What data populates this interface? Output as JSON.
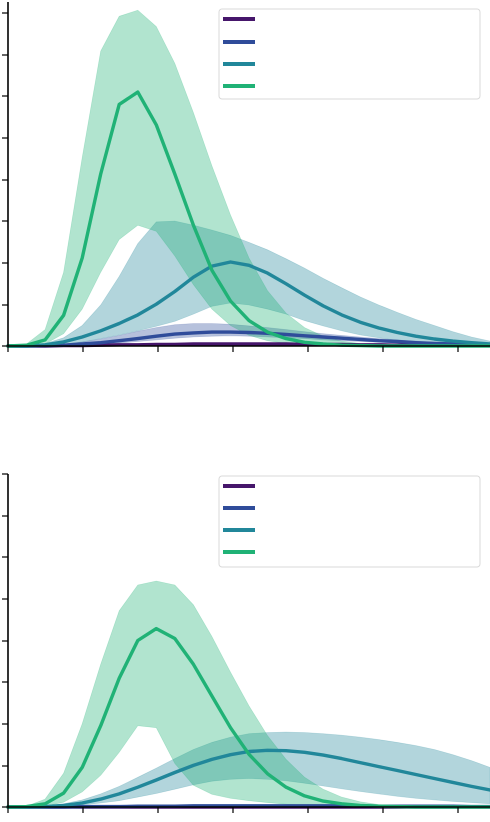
{
  "colors": {
    "series_1": "#46166b",
    "series_2": "#2f4c9a",
    "series_3": "#21879a",
    "series_4": "#20b276"
  },
  "chart_data": [
    {
      "type": "area",
      "x": [
        0,
        0.25,
        0.5,
        0.75,
        1,
        1.25,
        1.5,
        1.75,
        2,
        2.25,
        2.5,
        2.75,
        3,
        3.25,
        3.5,
        3.75,
        4,
        4.25,
        4.5,
        4.75,
        5,
        5.25,
        5.5,
        5.75,
        6,
        6.25,
        6.5
      ],
      "xlim": [
        0,
        6.5
      ],
      "ylim": [
        0,
        8.4
      ],
      "legend_position": "top-right",
      "grid": false,
      "series": [
        {
          "color_key": "series_1",
          "values": [
            0,
            0,
            0,
            0.01,
            0.01,
            0.02,
            0.03,
            0.03,
            0.04,
            0.04,
            0.05,
            0.05,
            0.05,
            0.05,
            0.05,
            0.05,
            0.04,
            0.04,
            0.04,
            0.03,
            0.03,
            0.02,
            0.02,
            0.02,
            0.01,
            0.01,
            0.01
          ],
          "lower": [
            0,
            0,
            0,
            0,
            0,
            0.01,
            0.01,
            0.02,
            0.02,
            0.02,
            0.03,
            0.03,
            0.03,
            0.03,
            0.03,
            0.03,
            0.02,
            0.02,
            0.02,
            0.02,
            0.01,
            0.01,
            0.01,
            0.01,
            0,
            0,
            0
          ],
          "upper": [
            0,
            0,
            0.01,
            0.01,
            0.02,
            0.03,
            0.04,
            0.05,
            0.06,
            0.07,
            0.07,
            0.07,
            0.07,
            0.07,
            0.07,
            0.07,
            0.06,
            0.06,
            0.06,
            0.05,
            0.04,
            0.04,
            0.03,
            0.03,
            0.02,
            0.02,
            0.02
          ]
        },
        {
          "color_key": "series_2",
          "values": [
            0,
            0,
            0.01,
            0.02,
            0.05,
            0.08,
            0.13,
            0.18,
            0.24,
            0.29,
            0.32,
            0.34,
            0.34,
            0.33,
            0.31,
            0.28,
            0.25,
            0.22,
            0.19,
            0.16,
            0.13,
            0.11,
            0.08,
            0.06,
            0.05,
            0.03,
            0.02
          ],
          "lower": [
            0,
            0,
            0,
            0.01,
            0.02,
            0.04,
            0.07,
            0.11,
            0.15,
            0.19,
            0.22,
            0.24,
            0.25,
            0.24,
            0.22,
            0.2,
            0.18,
            0.15,
            0.13,
            0.11,
            0.09,
            0.07,
            0.05,
            0.04,
            0.03,
            0.02,
            0.01
          ],
          "upper": [
            0,
            0.01,
            0.02,
            0.05,
            0.1,
            0.17,
            0.26,
            0.36,
            0.45,
            0.52,
            0.55,
            0.55,
            0.53,
            0.49,
            0.45,
            0.4,
            0.35,
            0.3,
            0.26,
            0.22,
            0.18,
            0.15,
            0.12,
            0.09,
            0.07,
            0.05,
            0.03
          ]
        },
        {
          "color_key": "series_3",
          "values": [
            0,
            0,
            0.03,
            0.1,
            0.22,
            0.37,
            0.55,
            0.76,
            1.02,
            1.33,
            1.68,
            1.95,
            2.05,
            1.97,
            1.78,
            1.52,
            1.24,
            0.98,
            0.76,
            0.58,
            0.44,
            0.33,
            0.24,
            0.17,
            0.12,
            0.08,
            0.05
          ],
          "lower": [
            0,
            0,
            0.01,
            0.04,
            0.1,
            0.18,
            0.27,
            0.37,
            0.48,
            0.6,
            0.78,
            0.97,
            1.05,
            1.0,
            0.9,
            0.78,
            0.62,
            0.49,
            0.37,
            0.27,
            0.2,
            0.14,
            0.1,
            0.07,
            0.05,
            0.03,
            0.02
          ],
          "upper": [
            0,
            0.01,
            0.06,
            0.2,
            0.5,
            1.0,
            1.7,
            2.5,
            3.03,
            3.05,
            2.95,
            2.83,
            2.7,
            2.53,
            2.35,
            2.13,
            1.9,
            1.65,
            1.42,
            1.2,
            1.0,
            0.82,
            0.65,
            0.5,
            0.35,
            0.22,
            0.12
          ]
        },
        {
          "color_key": "series_4",
          "values": [
            0,
            0.02,
            0.15,
            0.75,
            2.15,
            4.2,
            5.9,
            6.2,
            5.4,
            4.2,
            2.95,
            1.85,
            1.1,
            0.62,
            0.34,
            0.18,
            0.09,
            0.05,
            0.02,
            0.01,
            0,
            0,
            0,
            0,
            0,
            0,
            0
          ],
          "lower": [
            0,
            0,
            0.05,
            0.3,
            0.9,
            1.8,
            2.6,
            2.95,
            2.8,
            2.2,
            1.5,
            0.9,
            0.5,
            0.26,
            0.13,
            0.06,
            0.03,
            0.01,
            0,
            0,
            0,
            0,
            0,
            0,
            0,
            0,
            0
          ],
          "upper": [
            0,
            0.05,
            0.4,
            1.8,
            4.6,
            7.2,
            8.05,
            8.2,
            7.8,
            6.9,
            5.7,
            4.4,
            3.2,
            2.15,
            1.35,
            0.8,
            0.45,
            0.24,
            0.12,
            0.06,
            0.03,
            0.01,
            0,
            0,
            0,
            0,
            0
          ]
        }
      ]
    },
    {
      "type": "area",
      "x": [
        0,
        0.25,
        0.5,
        0.75,
        1,
        1.25,
        1.5,
        1.75,
        2,
        2.25,
        2.5,
        2.75,
        3,
        3.25,
        3.5,
        3.75,
        4,
        4.25,
        4.5,
        4.75,
        5,
        5.25,
        5.5,
        5.75,
        6,
        6.25,
        6.5
      ],
      "xlim": [
        0,
        6.5
      ],
      "ylim": [
        0,
        8.4
      ],
      "legend_position": "top-right",
      "grid": false,
      "series": [
        {
          "color_key": "series_1",
          "values": [
            0,
            0,
            0,
            0,
            0,
            0,
            0,
            0,
            0,
            0,
            0,
            0,
            0,
            0,
            0,
            0,
            0,
            0,
            0,
            0,
            0,
            0,
            0,
            0,
            0,
            0,
            0
          ],
          "lower": [
            0,
            0,
            0,
            0,
            0,
            0,
            0,
            0,
            0,
            0,
            0,
            0,
            0,
            0,
            0,
            0,
            0,
            0,
            0,
            0,
            0,
            0,
            0,
            0,
            0,
            0,
            0
          ],
          "upper": [
            0,
            0,
            0,
            0,
            0,
            0,
            0,
            0,
            0,
            0,
            0,
            0,
            0,
            0,
            0,
            0,
            0,
            0,
            0,
            0,
            0,
            0,
            0,
            0,
            0,
            0,
            0
          ]
        },
        {
          "color_key": "series_2",
          "values": [
            0,
            0,
            0,
            0,
            0.01,
            0.01,
            0.01,
            0.02,
            0.02,
            0.02,
            0.03,
            0.03,
            0.03,
            0.03,
            0.03,
            0.03,
            0.03,
            0.03,
            0.03,
            0.03,
            0.02,
            0.02,
            0.02,
            0.02,
            0.02,
            0.01,
            0.01
          ],
          "lower": [
            0,
            0,
            0,
            0,
            0,
            0,
            0,
            0.01,
            0.01,
            0.01,
            0.01,
            0.01,
            0.02,
            0.02,
            0.02,
            0.02,
            0.02,
            0.02,
            0.02,
            0.01,
            0.01,
            0.01,
            0.01,
            0.01,
            0.01,
            0,
            0
          ],
          "upper": [
            0,
            0,
            0,
            0.01,
            0.01,
            0.02,
            0.02,
            0.03,
            0.03,
            0.04,
            0.04,
            0.04,
            0.05,
            0.05,
            0.05,
            0.05,
            0.05,
            0.05,
            0.04,
            0.04,
            0.04,
            0.04,
            0.03,
            0.03,
            0.03,
            0.02,
            0.02
          ]
        },
        {
          "color_key": "series_3",
          "values": [
            0,
            0,
            0.01,
            0.04,
            0.1,
            0.2,
            0.33,
            0.5,
            0.68,
            0.87,
            1.05,
            1.2,
            1.32,
            1.4,
            1.43,
            1.42,
            1.38,
            1.31,
            1.22,
            1.12,
            1.02,
            0.92,
            0.82,
            0.72,
            0.62,
            0.52,
            0.43
          ],
          "lower": [
            0,
            0,
            0,
            0.02,
            0.05,
            0.1,
            0.16,
            0.25,
            0.34,
            0.45,
            0.56,
            0.65,
            0.7,
            0.72,
            0.7,
            0.66,
            0.6,
            0.53,
            0.46,
            0.39,
            0.33,
            0.27,
            0.22,
            0.18,
            0.14,
            0.11,
            0.08
          ],
          "upper": [
            0,
            0.01,
            0.03,
            0.08,
            0.18,
            0.33,
            0.52,
            0.75,
            0.98,
            1.22,
            1.45,
            1.63,
            1.76,
            1.85,
            1.88,
            1.89,
            1.88,
            1.85,
            1.81,
            1.76,
            1.7,
            1.63,
            1.55,
            1.45,
            1.32,
            1.17,
            1.0
          ]
        },
        {
          "color_key": "series_4",
          "values": [
            0,
            0.01,
            0.08,
            0.35,
            1.0,
            2.05,
            3.25,
            4.2,
            4.5,
            4.25,
            3.6,
            2.8,
            2.0,
            1.33,
            0.84,
            0.5,
            0.28,
            0.15,
            0.08,
            0.04,
            0.02,
            0.01,
            0,
            0,
            0,
            0,
            0
          ],
          "lower": [
            0,
            0,
            0.02,
            0.12,
            0.38,
            0.8,
            1.38,
            2.05,
            2.0,
            1.1,
            0.55,
            0.32,
            0.22,
            0.16,
            0.11,
            0.07,
            0.04,
            0.02,
            0.01,
            0,
            0,
            0,
            0,
            0,
            0,
            0,
            0
          ],
          "upper": [
            0,
            0.02,
            0.2,
            0.85,
            2.1,
            3.6,
            4.95,
            5.6,
            5.7,
            5.6,
            5.1,
            4.3,
            3.4,
            2.55,
            1.8,
            1.2,
            0.75,
            0.45,
            0.25,
            0.13,
            0.06,
            0.03,
            0.01,
            0,
            0,
            0,
            0
          ]
        }
      ]
    }
  ]
}
